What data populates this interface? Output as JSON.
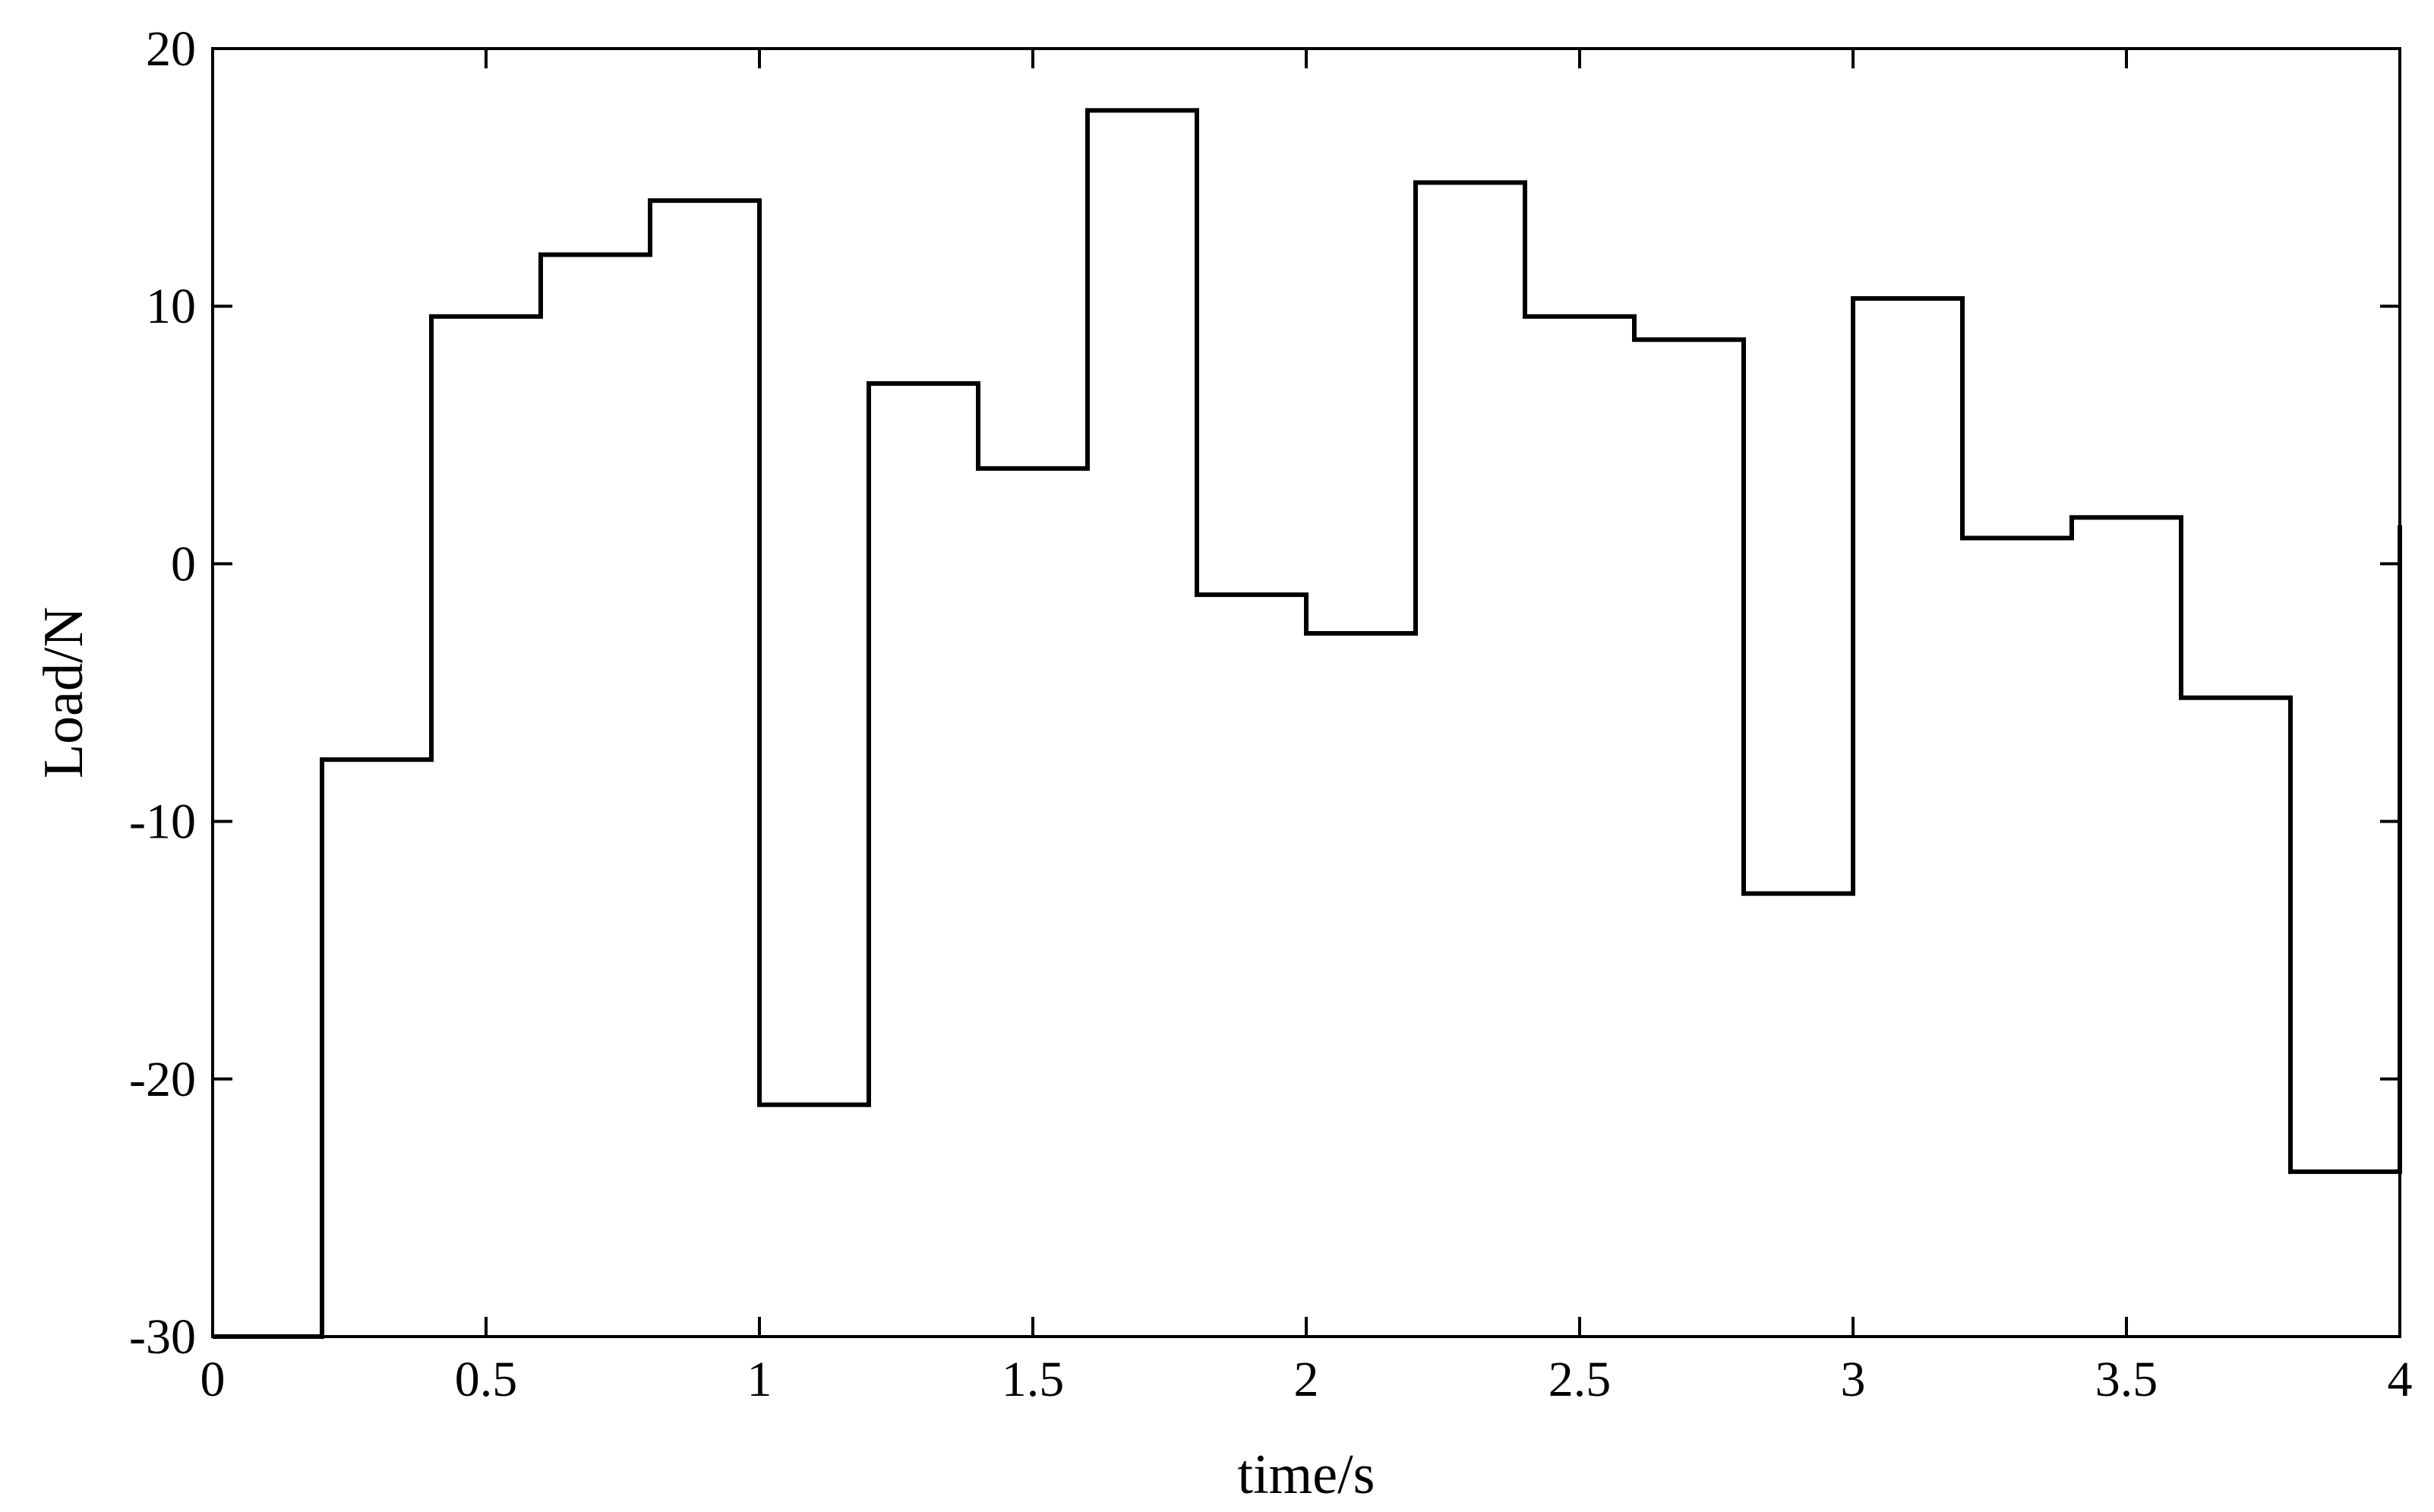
{
  "chart_data": {
    "type": "line",
    "step": true,
    "title": "",
    "xlabel": "time/s",
    "ylabel": "Load/N",
    "xlim": [
      0,
      4
    ],
    "ylim": [
      -30,
      20
    ],
    "xticks": [
      0,
      0.5,
      1,
      1.5,
      2,
      2.5,
      3,
      3.5,
      4
    ],
    "xtick_labels": [
      "0",
      "0.5",
      "1",
      "1.5",
      "2",
      "2.5",
      "3",
      "3.5",
      "4"
    ],
    "yticks": [
      -30,
      -20,
      -10,
      0,
      10,
      20
    ],
    "ytick_labels": [
      "-30",
      "-20",
      "-10",
      "0",
      "10",
      "20"
    ],
    "grid": false,
    "line_color": "#000000",
    "series": [
      {
        "x": [
          0,
          0.2,
          0.4,
          0.6,
          0.8,
          1.0,
          1.2,
          1.4,
          1.6,
          1.8,
          2.0,
          2.2,
          2.4,
          2.6,
          2.8,
          3.0,
          3.2,
          3.4,
          3.6,
          3.8
        ],
        "values": [
          -30,
          -7.6,
          9.6,
          12.0,
          14.1,
          -21.0,
          7.0,
          3.7,
          17.6,
          -1.2,
          -2.7,
          14.8,
          9.6,
          8.7,
          -12.8,
          10.3,
          1.0,
          1.8,
          -5.2,
          -23.6
        ],
        "x_end": 4.0,
        "end_value": 1.5
      }
    ]
  }
}
